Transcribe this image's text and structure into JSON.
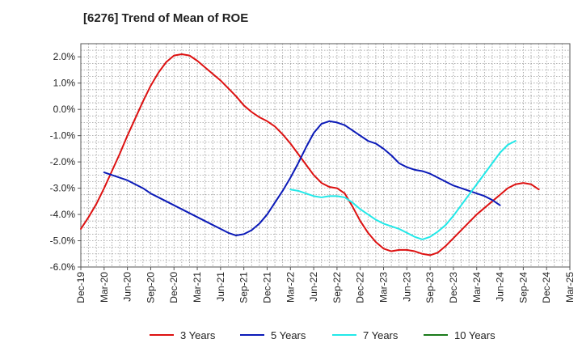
{
  "chart_data": {
    "type": "line",
    "title": "[6276]  Trend of Mean of ROE",
    "xlabel": "",
    "ylabel": "",
    "x_ticks": [
      "Dec-19",
      "Mar-20",
      "Jun-20",
      "Sep-20",
      "Dec-20",
      "Mar-21",
      "Jun-21",
      "Sep-21",
      "Dec-21",
      "Mar-22",
      "Jun-22",
      "Sep-22",
      "Dec-22",
      "Mar-23",
      "Jun-23",
      "Sep-23",
      "Dec-23",
      "Mar-24",
      "Jun-24",
      "Sep-24",
      "Dec-24",
      "Mar-25"
    ],
    "y_ticks": [
      2.0,
      1.0,
      0.0,
      -1.0,
      -2.0,
      -3.0,
      -4.0,
      -5.0,
      -6.0
    ],
    "y_tick_labels": [
      "2.0%",
      "1.0%",
      "0.0%",
      "-1.0%",
      "-2.0%",
      "-3.0%",
      "-4.0%",
      "-5.0%",
      "-6.0%"
    ],
    "ylim": [
      -6.0,
      2.5
    ],
    "grid": true,
    "legend_position": "bottom",
    "series": [
      {
        "name": "3 Years",
        "color": "#dd1111",
        "start_index": 0,
        "values": [
          -4.55,
          -4.1,
          -3.6,
          -3.0,
          -2.35,
          -1.7,
          -1.0,
          -0.35,
          0.3,
          0.9,
          1.4,
          1.8,
          2.05,
          2.1,
          2.05,
          1.85,
          1.6,
          1.35,
          1.1,
          0.8,
          0.5,
          0.15,
          -0.1,
          -0.3,
          -0.45,
          -0.65,
          -0.95,
          -1.3,
          -1.7,
          -2.1,
          -2.5,
          -2.8,
          -2.95,
          -3.0,
          -3.2,
          -3.7,
          -4.25,
          -4.7,
          -5.05,
          -5.3,
          -5.4,
          -5.35,
          -5.35,
          -5.4,
          -5.5,
          -5.55,
          -5.45,
          -5.2,
          -4.9,
          -4.6,
          -4.3,
          -4.0,
          -3.75,
          -3.5,
          -3.25,
          -3.0,
          -2.85,
          -2.8,
          -2.85,
          -3.05
        ]
      },
      {
        "name": "5 Years",
        "color": "#0b1ab8",
        "start_index": 3,
        "values": [
          -2.4,
          -2.5,
          -2.6,
          -2.7,
          -2.85,
          -3.0,
          -3.2,
          -3.35,
          -3.5,
          -3.65,
          -3.8,
          -3.95,
          -4.1,
          -4.25,
          -4.4,
          -4.55,
          -4.7,
          -4.8,
          -4.75,
          -4.6,
          -4.35,
          -4.0,
          -3.55,
          -3.1,
          -2.6,
          -2.05,
          -1.45,
          -0.9,
          -0.55,
          -0.45,
          -0.5,
          -0.6,
          -0.8,
          -1.0,
          -1.2,
          -1.3,
          -1.5,
          -1.75,
          -2.05,
          -2.2,
          -2.3,
          -2.35,
          -2.45,
          -2.6,
          -2.75,
          -2.9,
          -3.0,
          -3.1,
          -3.2,
          -3.3,
          -3.45,
          -3.65
        ]
      },
      {
        "name": "7 Years",
        "color": "#22e8e8",
        "start_index": 27,
        "values": [
          -3.05,
          -3.1,
          -3.2,
          -3.3,
          -3.35,
          -3.3,
          -3.3,
          -3.35,
          -3.55,
          -3.8,
          -4.0,
          -4.2,
          -4.35,
          -4.45,
          -4.55,
          -4.7,
          -4.85,
          -4.95,
          -4.85,
          -4.65,
          -4.4,
          -4.05,
          -3.65,
          -3.25,
          -2.85,
          -2.45,
          -2.05,
          -1.65,
          -1.35,
          -1.2
        ]
      },
      {
        "name": "10 Years",
        "color": "#1a7a1a",
        "start_index": 0,
        "values": []
      }
    ]
  }
}
